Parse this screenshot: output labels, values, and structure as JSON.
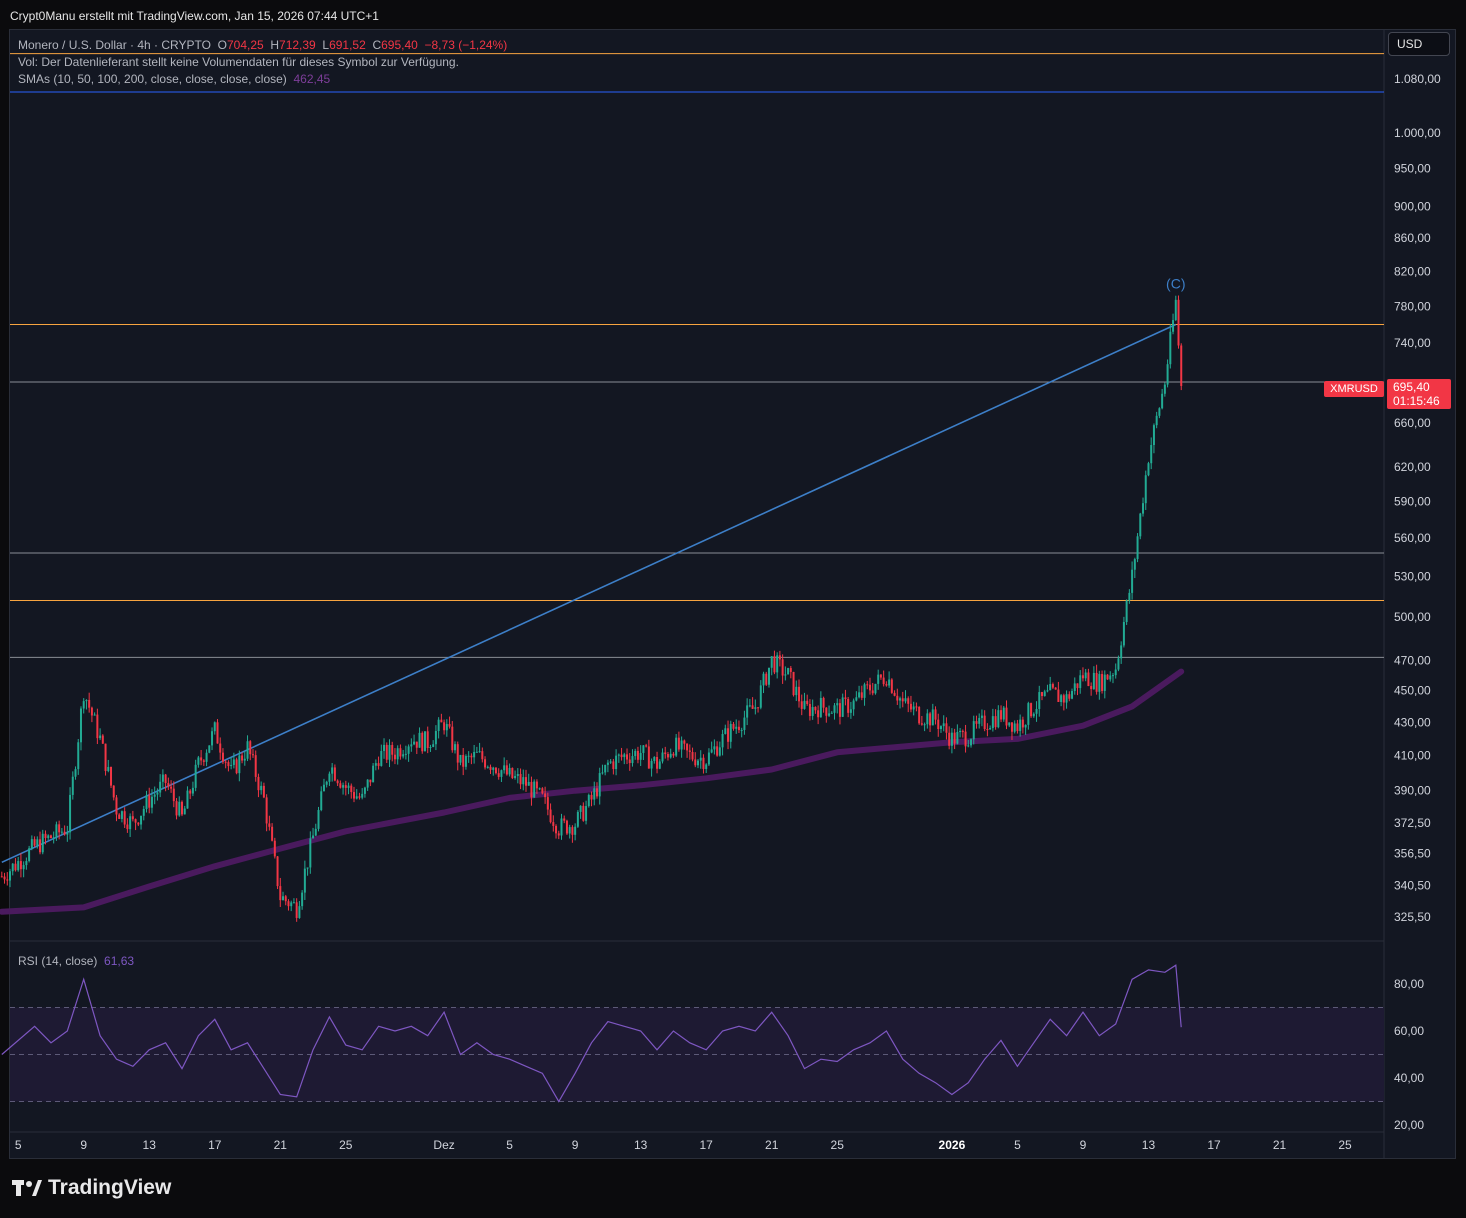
{
  "header": {
    "attribution": "Crypt0Manu erstellt mit TradingView.com, Jan 15, 2026 07:44 UTC+1"
  },
  "legend": {
    "symbol": "Monero / U.S. Dollar · 4h · CRYPTO",
    "open_label": "O",
    "open": "704,25",
    "high_label": "H",
    "high": "712,39",
    "low_label": "L",
    "low": "691,52",
    "close_label": "C",
    "close": "695,40",
    "change": "−8,73 (−1,24%)",
    "volume_note": "Vol: Der Datenlieferant stellt keine Volumendaten für dieses Symbol zur Verfügung.",
    "sma_label": "SMAs (10, 50, 100, 200, close, close, close, close)",
    "sma_value": "462,45"
  },
  "rsi_legend": {
    "label": "RSI (14, close)",
    "value": "61,63"
  },
  "currency_button": "USD",
  "symbol_tag": "XMRUSD",
  "price_tag": {
    "price": "695,40",
    "countdown": "01:15:46"
  },
  "wave_label": "(C)",
  "brand": "TradingView",
  "colors": {
    "up": "#22ab94",
    "down": "#f23645",
    "sma": "#4a1a5e",
    "trendline": "#3d7fc8",
    "orange": "#f7931a",
    "rsi": "#7e57c2"
  },
  "chart_data": [
    {
      "type": "candlestick",
      "title": "Monero / U.S. Dollar · 4h · CRYPTO",
      "scale": "log",
      "ylim": [
        315,
        1120
      ],
      "y_ticks": [
        "1.080,00",
        "1.000,00",
        "950,00",
        "900,00",
        "860,00",
        "820,00",
        "780,00",
        "740,00",
        "660,00",
        "620,00",
        "590,00",
        "560,00",
        "530,00",
        "500,00",
        "470,00",
        "450,00",
        "430,00",
        "410,00",
        "390,00",
        "372,50",
        "356,50",
        "340,50",
        "325,50"
      ],
      "y_tick_values": [
        1080,
        1000,
        950,
        900,
        860,
        820,
        780,
        740,
        660,
        620,
        590,
        560,
        530,
        500,
        470,
        450,
        430,
        410,
        390,
        372.5,
        356.5,
        340.5,
        325.5
      ],
      "x_ticks": [
        "5",
        "9",
        "13",
        "17",
        "21",
        "25",
        "Dez",
        "5",
        "9",
        "13",
        "17",
        "21",
        "25",
        "2026",
        "5",
        "9",
        "13",
        "17",
        "21",
        "25"
      ],
      "x_tick_dates": [
        "2025-11-05",
        "2025-11-09",
        "2025-11-13",
        "2025-11-17",
        "2025-11-21",
        "2025-11-25",
        "2025-12-01",
        "2025-12-05",
        "2025-12-09",
        "2025-12-13",
        "2025-12-17",
        "2025-12-21",
        "2025-12-25",
        "2026-01-01",
        "2026-01-05",
        "2026-01-09",
        "2026-01-13",
        "2026-01-17",
        "2026-01-21",
        "2026-01-25"
      ],
      "path_points": [
        [
          "2025-11-04",
          345
        ],
        [
          "2025-11-05",
          352
        ],
        [
          "2025-11-06",
          360
        ],
        [
          "2025-11-07",
          365
        ],
        [
          "2025-11-08",
          370
        ],
        [
          "2025-11-09",
          450
        ],
        [
          "2025-11-10",
          420
        ],
        [
          "2025-11-11",
          380
        ],
        [
          "2025-11-12",
          372
        ],
        [
          "2025-11-13",
          385
        ],
        [
          "2025-11-14",
          395
        ],
        [
          "2025-11-15",
          375
        ],
        [
          "2025-11-16",
          405
        ],
        [
          "2025-11-17",
          425
        ],
        [
          "2025-11-18",
          400
        ],
        [
          "2025-11-19",
          415
        ],
        [
          "2025-11-20",
          385
        ],
        [
          "2025-11-21",
          335
        ],
        [
          "2025-11-22",
          330
        ],
        [
          "2025-11-23",
          365
        ],
        [
          "2025-11-24",
          405
        ],
        [
          "2025-11-25",
          392
        ],
        [
          "2025-11-26",
          385
        ],
        [
          "2025-11-27",
          410
        ],
        [
          "2025-11-28",
          412
        ],
        [
          "2025-11-29",
          420
        ],
        [
          "2025-11-30",
          418
        ],
        [
          "2025-12-01",
          430
        ],
        [
          "2025-12-02",
          405
        ],
        [
          "2025-12-03",
          410
        ],
        [
          "2025-12-04",
          405
        ],
        [
          "2025-12-05",
          398
        ],
        [
          "2025-12-06",
          394
        ],
        [
          "2025-12-07",
          385
        ],
        [
          "2025-12-08",
          370
        ],
        [
          "2025-12-09",
          372
        ],
        [
          "2025-12-10",
          385
        ],
        [
          "2025-12-11",
          405
        ],
        [
          "2025-12-12",
          410
        ],
        [
          "2025-12-13",
          412
        ],
        [
          "2025-12-14",
          405
        ],
        [
          "2025-12-15",
          416
        ],
        [
          "2025-12-16",
          410
        ],
        [
          "2025-12-17",
          408
        ],
        [
          "2025-12-18",
          420
        ],
        [
          "2025-12-19",
          430
        ],
        [
          "2025-12-20",
          440
        ],
        [
          "2025-12-21",
          470
        ],
        [
          "2025-12-22",
          460
        ],
        [
          "2025-12-23",
          438
        ],
        [
          "2025-12-24",
          440
        ],
        [
          "2025-12-25",
          438
        ],
        [
          "2025-12-26",
          442
        ],
        [
          "2025-12-27",
          452
        ],
        [
          "2025-12-28",
          460
        ],
        [
          "2025-12-29",
          442
        ],
        [
          "2025-12-30",
          435
        ],
        [
          "2025-12-31",
          432
        ],
        [
          "2026-01-01",
          420
        ],
        [
          "2026-01-02",
          422
        ],
        [
          "2026-01-03",
          430
        ],
        [
          "2026-01-04",
          435
        ],
        [
          "2026-01-05",
          428
        ],
        [
          "2026-01-06",
          440
        ],
        [
          "2026-01-07",
          448
        ],
        [
          "2026-01-08",
          445
        ],
        [
          "2026-01-09",
          460
        ],
        [
          "2026-01-10",
          455
        ],
        [
          "2026-01-11",
          465
        ],
        [
          "2026-01-12",
          530
        ],
        [
          "2026-01-13",
          630
        ],
        [
          "2026-01-14",
          700
        ],
        [
          "2026-01-14T16:00",
          785
        ],
        [
          "2026-01-15",
          695.4
        ]
      ],
      "sma": {
        "label": "SMA",
        "value": "462,45",
        "points": [
          [
            "2025-11-04",
            328
          ],
          [
            "2025-11-09",
            330
          ],
          [
            "2025-11-13",
            340
          ],
          [
            "2025-11-17",
            350
          ],
          [
            "2025-11-21",
            359
          ],
          [
            "2025-11-25",
            368
          ],
          [
            "2025-12-01",
            378
          ],
          [
            "2025-12-05",
            386
          ],
          [
            "2025-12-09",
            390
          ],
          [
            "2025-12-13",
            393
          ],
          [
            "2025-12-17",
            397
          ],
          [
            "2025-12-21",
            402
          ],
          [
            "2025-12-25",
            412
          ],
          [
            "2026-01-01",
            418
          ],
          [
            "2026-01-05",
            420
          ],
          [
            "2026-01-09",
            428
          ],
          [
            "2026-01-12",
            440
          ],
          [
            "2026-01-15",
            462.45
          ]
        ]
      },
      "horizontal_levels": [
        {
          "price": 1120,
          "color": "orange"
        },
        {
          "price": 1060,
          "color": "blue"
        },
        {
          "price": 760,
          "color": "orange"
        },
        {
          "price": 700,
          "color": "gray"
        },
        {
          "price": 548,
          "color": "gray"
        },
        {
          "price": 512,
          "color": "orange"
        },
        {
          "price": 472,
          "color": "gray"
        }
      ],
      "trendline": {
        "from": [
          "2025-11-04",
          352
        ],
        "to": [
          "2026-01-14T16:00",
          760
        ]
      },
      "last_price": "695,40"
    },
    {
      "type": "line",
      "title": "RSI (14, close)",
      "ylim": [
        20,
        90
      ],
      "y_ticks": [
        "80,00",
        "60,00",
        "40,00",
        "20,00"
      ],
      "y_tick_values": [
        80,
        60,
        40,
        20
      ],
      "bands": {
        "upper": 70,
        "middle": 50,
        "lower": 30
      },
      "values": [
        [
          "2025-11-04",
          50
        ],
        [
          "2025-11-06",
          62
        ],
        [
          "2025-11-07",
          55
        ],
        [
          "2025-11-08",
          60
        ],
        [
          "2025-11-09",
          82
        ],
        [
          "2025-11-10",
          58
        ],
        [
          "2025-11-11",
          48
        ],
        [
          "2025-11-12",
          45
        ],
        [
          "2025-11-13",
          52
        ],
        [
          "2025-11-14",
          55
        ],
        [
          "2025-11-15",
          44
        ],
        [
          "2025-11-16",
          58
        ],
        [
          "2025-11-17",
          65
        ],
        [
          "2025-11-18",
          52
        ],
        [
          "2025-11-19",
          55
        ],
        [
          "2025-11-20",
          44
        ],
        [
          "2025-11-21",
          33
        ],
        [
          "2025-11-22",
          32
        ],
        [
          "2025-11-23",
          52
        ],
        [
          "2025-11-24",
          66
        ],
        [
          "2025-11-25",
          54
        ],
        [
          "2025-11-26",
          52
        ],
        [
          "2025-11-27",
          62
        ],
        [
          "2025-11-28",
          60
        ],
        [
          "2025-11-29",
          62
        ],
        [
          "2025-11-30",
          58
        ],
        [
          "2025-12-01",
          68
        ],
        [
          "2025-12-02",
          50
        ],
        [
          "2025-12-03",
          55
        ],
        [
          "2025-12-04",
          50
        ],
        [
          "2025-12-05",
          48
        ],
        [
          "2025-12-06",
          45
        ],
        [
          "2025-12-07",
          42
        ],
        [
          "2025-12-08",
          30
        ],
        [
          "2025-12-09",
          42
        ],
        [
          "2025-12-10",
          55
        ],
        [
          "2025-12-11",
          64
        ],
        [
          "2025-12-12",
          62
        ],
        [
          "2025-12-13",
          60
        ],
        [
          "2025-12-14",
          52
        ],
        [
          "2025-12-15",
          60
        ],
        [
          "2025-12-16",
          55
        ],
        [
          "2025-12-17",
          52
        ],
        [
          "2025-12-18",
          60
        ],
        [
          "2025-12-19",
          62
        ],
        [
          "2025-12-20",
          60
        ],
        [
          "2025-12-21",
          68
        ],
        [
          "2025-12-22",
          58
        ],
        [
          "2025-12-23",
          44
        ],
        [
          "2025-12-24",
          48
        ],
        [
          "2025-12-25",
          47
        ],
        [
          "2025-12-26",
          52
        ],
        [
          "2025-12-27",
          55
        ],
        [
          "2025-12-28",
          60
        ],
        [
          "2025-12-29",
          48
        ],
        [
          "2025-12-30",
          42
        ],
        [
          "2025-12-31",
          38
        ],
        [
          "2026-01-01",
          33
        ],
        [
          "2026-01-02",
          38
        ],
        [
          "2026-01-03",
          48
        ],
        [
          "2026-01-04",
          56
        ],
        [
          "2026-01-05",
          45
        ],
        [
          "2026-01-06",
          55
        ],
        [
          "2026-01-07",
          65
        ],
        [
          "2026-01-08",
          58
        ],
        [
          "2026-01-09",
          68
        ],
        [
          "2026-01-10",
          58
        ],
        [
          "2026-01-11",
          63
        ],
        [
          "2026-01-12",
          82
        ],
        [
          "2026-01-13",
          86
        ],
        [
          "2026-01-14",
          85
        ],
        [
          "2026-01-14T16:00",
          88
        ],
        [
          "2026-01-15",
          61.63
        ]
      ]
    }
  ]
}
